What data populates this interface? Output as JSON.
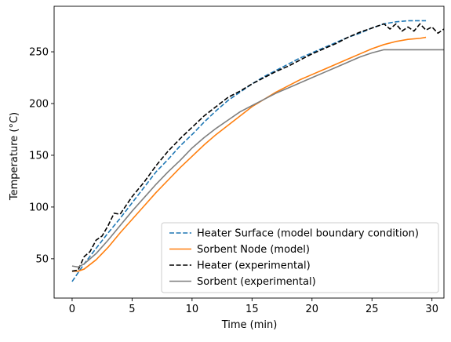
{
  "chart_data": {
    "type": "line",
    "title": "",
    "xlabel": "Time (min)",
    "ylabel": "Temperature (°C)",
    "xlim": [
      -1.5,
      31
    ],
    "ylim": [
      12,
      294
    ],
    "xticks": [
      0,
      5,
      10,
      15,
      20,
      25,
      30
    ],
    "yticks": [
      50,
      100,
      150,
      200,
      250
    ],
    "grid": false,
    "legend_position": "lower-right",
    "series": [
      {
        "name": "Heater Surface (model boundary condition)",
        "color": "#1f77b4",
        "style": "dashed",
        "x": [
          0,
          1,
          2,
          3,
          4,
          5,
          6,
          7,
          8,
          9,
          10,
          11,
          12,
          13,
          14,
          15,
          16,
          17,
          18,
          19,
          20,
          21,
          22,
          23,
          24,
          25,
          26,
          27,
          28,
          29,
          29.5
        ],
        "y": [
          28,
          45,
          60,
          75,
          89,
          104,
          119,
          134,
          146,
          159,
          170,
          182,
          193,
          203,
          211,
          219,
          226,
          232,
          238,
          244,
          249,
          254,
          259,
          264,
          268,
          273,
          277,
          279,
          280,
          280,
          280
        ]
      },
      {
        "name": "Sorbent Node (model)",
        "color": "#ff7f0e",
        "style": "solid",
        "x": [
          0,
          0.5,
          1,
          2,
          3,
          4,
          5,
          6,
          7,
          8,
          9,
          10,
          11,
          12,
          13,
          14,
          15,
          16,
          17,
          18,
          19,
          20,
          21,
          22,
          23,
          24,
          25,
          26,
          27,
          28,
          29,
          29.5
        ],
        "y": [
          38,
          38,
          40,
          49,
          61,
          75,
          88,
          101,
          114,
          126,
          138,
          149,
          160,
          170,
          179,
          188,
          197,
          204,
          211,
          217,
          223,
          228,
          233,
          238,
          243,
          248,
          253,
          257,
          260,
          262,
          263,
          264
        ]
      },
      {
        "name": "Heater (experimental)",
        "color": "#000000",
        "style": "dashed",
        "x": [
          0,
          0.5,
          1,
          1.5,
          2,
          2.5,
          3,
          3.5,
          4,
          5,
          6,
          7,
          8,
          9,
          10,
          11,
          12,
          13,
          14,
          15,
          16,
          17,
          18,
          19,
          20,
          21,
          22,
          23,
          24,
          25,
          26,
          26.5,
          27,
          27.5,
          28,
          28.5,
          29,
          29.5,
          30,
          30.5,
          31
        ],
        "y": [
          38,
          39,
          52,
          57,
          68,
          72,
          82,
          94,
          93,
          110,
          124,
          140,
          154,
          166,
          177,
          188,
          197,
          206,
          212,
          219,
          225,
          231,
          236,
          242,
          248,
          253,
          258,
          264,
          269,
          273,
          277,
          272,
          277,
          270,
          274,
          270,
          277,
          271,
          274,
          268,
          272
        ]
      },
      {
        "name": "Sorbent (experimental)",
        "color": "#7f7f7f",
        "style": "solid",
        "x": [
          0,
          0.5,
          1,
          2,
          3,
          4,
          5,
          6,
          7,
          8,
          9,
          10,
          11,
          12,
          13,
          14,
          15,
          16,
          17,
          18,
          19,
          20,
          21,
          22,
          23,
          24,
          25,
          26,
          27,
          28,
          29,
          30,
          31
        ],
        "y": [
          43,
          42,
          45,
          55,
          68,
          82,
          96,
          109,
          122,
          134,
          145,
          157,
          167,
          176,
          184,
          192,
          198,
          204,
          210,
          215,
          220,
          225,
          230,
          235,
          240,
          245,
          249,
          252,
          252,
          252,
          252,
          252,
          252
        ]
      }
    ]
  }
}
